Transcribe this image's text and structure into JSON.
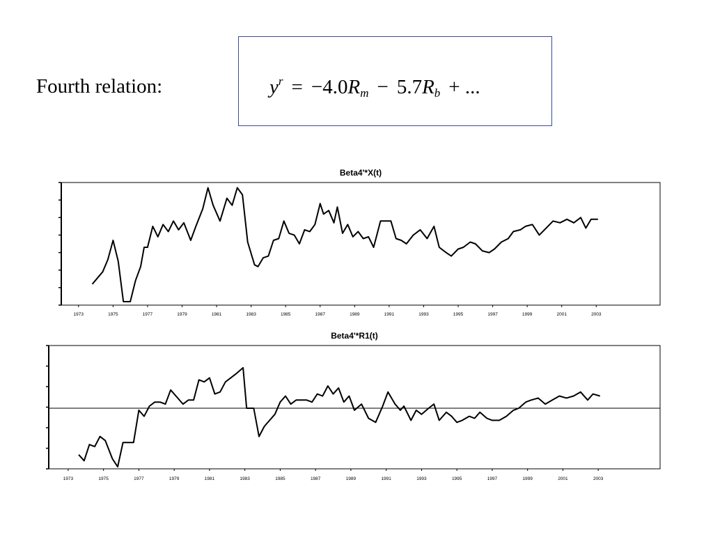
{
  "slide": {
    "heading": "Fourth relation:",
    "formula": {
      "lhs_var": "y",
      "lhs_sup": "r",
      "eq": "=",
      "coef1": "−4.0",
      "var1": "R",
      "sub1": "m",
      "minus": "−",
      "coef2": "5.7",
      "var2": "R",
      "sub2": "b",
      "tail": "+ ..."
    }
  },
  "chart_data": [
    {
      "type": "line",
      "title": "Beta4'*X(t)",
      "xlabel": "",
      "ylabel": "",
      "xlim": [
        1972.0,
        2006.7
      ],
      "ylim": [
        0,
        7
      ],
      "y_tick_count": 8,
      "y_tick_labels_shown": false,
      "x_ticks": [
        1973,
        1975,
        1977,
        1979,
        1981,
        1983,
        1985,
        1987,
        1989,
        1991,
        1993,
        1995,
        1997,
        1999,
        2001,
        2003
      ],
      "grid": false,
      "zero_line": false,
      "x": [
        1973.8,
        1974.4,
        1974.7,
        1975.0,
        1975.3,
        1975.6,
        1976.0,
        1976.3,
        1976.6,
        1976.8,
        1977.0,
        1977.3,
        1977.6,
        1977.9,
        1978.2,
        1978.5,
        1978.8,
        1979.1,
        1979.5,
        1979.8,
        1980.2,
        1980.5,
        1980.8,
        1981.2,
        1981.6,
        1981.9,
        1982.2,
        1982.5,
        1982.8,
        1983.2,
        1983.4,
        1983.7,
        1984.0,
        1984.3,
        1984.6,
        1984.9,
        1985.2,
        1985.5,
        1985.8,
        1986.1,
        1986.4,
        1986.7,
        1987.0,
        1987.2,
        1987.5,
        1987.8,
        1988.0,
        1988.3,
        1988.6,
        1988.9,
        1989.2,
        1989.5,
        1989.8,
        1990.1,
        1990.5,
        1990.8,
        1991.1,
        1991.4,
        1991.7,
        1992.0,
        1992.4,
        1992.8,
        1993.2,
        1993.6,
        1993.9,
        1994.3,
        1994.6,
        1995.0,
        1995.3,
        1995.7,
        1996.0,
        1996.4,
        1996.8,
        1997.1,
        1997.5,
        1997.9,
        1998.2,
        1998.6,
        1998.9,
        1999.3,
        1999.7,
        2000.1,
        2000.5,
        2000.9,
        2001.3,
        2001.7,
        2002.1,
        2002.4,
        2002.7,
        2003.1
      ],
      "y": [
        1.2,
        1.9,
        2.6,
        3.7,
        2.5,
        0.2,
        0.2,
        1.4,
        2.2,
        3.3,
        3.3,
        4.5,
        3.9,
        4.6,
        4.2,
        4.8,
        4.3,
        4.7,
        3.7,
        4.5,
        5.5,
        6.7,
        5.7,
        4.8,
        6.1,
        5.7,
        6.7,
        6.3,
        3.6,
        2.3,
        2.2,
        2.7,
        2.8,
        3.7,
        3.8,
        4.8,
        4.1,
        4.0,
        3.5,
        4.3,
        4.2,
        4.6,
        5.8,
        5.2,
        5.4,
        4.7,
        5.6,
        4.1,
        4.6,
        3.9,
        4.2,
        3.8,
        3.9,
        3.3,
        4.8,
        4.8,
        4.8,
        3.8,
        3.7,
        3.5,
        4.0,
        4.3,
        3.8,
        4.5,
        3.3,
        3.0,
        2.8,
        3.2,
        3.3,
        3.6,
        3.5,
        3.1,
        3.0,
        3.2,
        3.6,
        3.8,
        4.2,
        4.3,
        4.5,
        4.6,
        4.0,
        4.4,
        4.8,
        4.7,
        4.9,
        4.7,
        5.0,
        4.4,
        4.9,
        4.9
      ]
    },
    {
      "type": "line",
      "title": "Beta4'*R1(t)",
      "xlabel": "",
      "ylabel": "",
      "xlim": [
        1971.9,
        2006.5
      ],
      "ylim": [
        -3,
        3.1
      ],
      "y_tick_count": 7,
      "y_tick_labels_shown": false,
      "x_ticks": [
        1973,
        1975,
        1977,
        1979,
        1981,
        1983,
        1985,
        1987,
        1989,
        1991,
        1993,
        1995,
        1997,
        1999,
        2001,
        2003
      ],
      "grid": false,
      "zero_line": true,
      "x": [
        1973.6,
        1973.9,
        1974.2,
        1974.5,
        1974.8,
        1975.1,
        1975.5,
        1975.8,
        1976.1,
        1976.7,
        1977.0,
        1977.3,
        1977.6,
        1977.9,
        1978.2,
        1978.5,
        1978.8,
        1979.1,
        1979.5,
        1979.8,
        1980.1,
        1980.4,
        1980.7,
        1981.0,
        1981.3,
        1981.6,
        1981.9,
        1982.2,
        1982.5,
        1982.9,
        1983.1,
        1983.5,
        1983.8,
        1984.1,
        1984.4,
        1984.7,
        1985.0,
        1985.3,
        1985.6,
        1985.9,
        1986.2,
        1986.5,
        1986.8,
        1987.1,
        1987.4,
        1987.7,
        1988.0,
        1988.3,
        1988.6,
        1988.9,
        1989.2,
        1989.6,
        1990.0,
        1990.4,
        1990.8,
        1991.1,
        1991.5,
        1991.8,
        1992.0,
        1992.4,
        1992.7,
        1993.0,
        1993.4,
        1993.7,
        1994.0,
        1994.4,
        1994.7,
        1995.0,
        1995.3,
        1995.7,
        1996.0,
        1996.3,
        1996.7,
        1997.0,
        1997.4,
        1997.8,
        1998.2,
        1998.5,
        1998.9,
        1999.2,
        1999.6,
        2000.0,
        2000.4,
        2000.8,
        2001.2,
        2001.6,
        2002.0,
        2002.4,
        2002.7,
        2003.1
      ],
      "y": [
        -2.3,
        -2.6,
        -1.8,
        -1.9,
        -1.4,
        -1.6,
        -2.5,
        -2.9,
        -1.7,
        -1.7,
        -0.1,
        -0.4,
        0.1,
        0.3,
        0.3,
        0.2,
        0.9,
        0.6,
        0.2,
        0.4,
        0.4,
        1.4,
        1.3,
        1.5,
        0.7,
        0.8,
        1.3,
        1.5,
        1.7,
        2.0,
        0.0,
        0.0,
        -1.4,
        -0.9,
        -0.6,
        -0.3,
        0.3,
        0.6,
        0.2,
        0.4,
        0.4,
        0.4,
        0.3,
        0.7,
        0.6,
        1.1,
        0.7,
        1.0,
        0.3,
        0.6,
        -0.1,
        0.2,
        -0.5,
        -0.7,
        0.1,
        0.8,
        0.2,
        -0.1,
        0.1,
        -0.6,
        -0.1,
        -0.3,
        0.0,
        0.2,
        -0.6,
        -0.2,
        -0.4,
        -0.7,
        -0.6,
        -0.4,
        -0.5,
        -0.2,
        -0.5,
        -0.6,
        -0.6,
        -0.4,
        -0.1,
        0.0,
        0.3,
        0.4,
        0.5,
        0.2,
        0.4,
        0.6,
        0.5,
        0.6,
        0.8,
        0.4,
        0.7,
        0.6
      ]
    }
  ]
}
